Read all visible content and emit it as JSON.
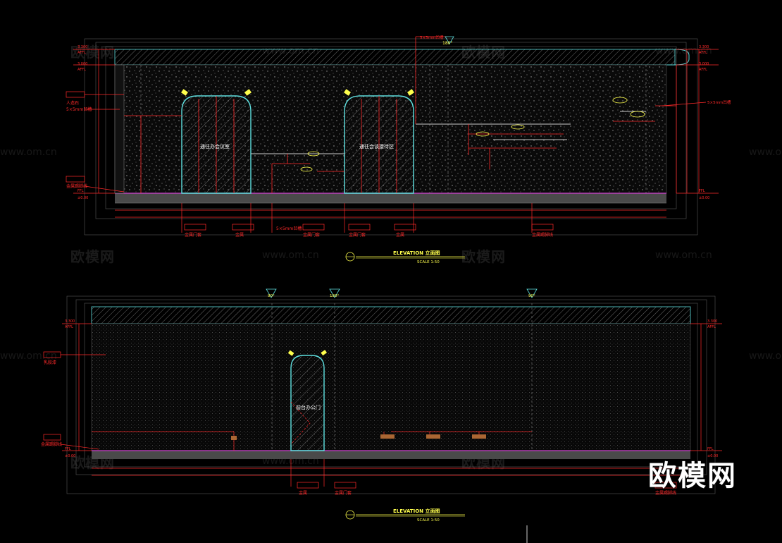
{
  "elevation1": {
    "title": "ELEVATION  立面图",
    "scale": "SCALE    1:50",
    "door1_label": "通往办会议室",
    "door2_label": "通往会谈接待区",
    "left_callouts": [
      "人造石",
      "5×5mm凹槽",
      "金属踢脚线"
    ],
    "right_callout": "5×5mm凹槽",
    "top_callout": "5×5mm凹槽",
    "bottom_callouts": [
      "金属门套",
      "金属",
      "5×5mm凹槽",
      "金属门套",
      "金属",
      "金属踢脚线"
    ],
    "level_labels": [
      "3.300",
      "AFFL",
      "3.000",
      "AFFL",
      "FFL",
      "±0.00"
    ]
  },
  "elevation2": {
    "title": "ELEVATION  立面图",
    "scale": "SCALE    1:50",
    "door_label": "前台办公门",
    "left_callouts": [
      "乳胶漆",
      "金属踢脚线"
    ],
    "bottom_callouts": [
      "金属",
      "金属门套",
      "金属踢脚线"
    ],
    "angle_labels": [
      "90°",
      "180°",
      "90°"
    ],
    "level_labels": [
      "3.300",
      "AFFL",
      "FFL",
      "±0.00"
    ]
  },
  "watermark": {
    "text": "欧模网",
    "url": "www.om.cn",
    "logo": "欧模网"
  },
  "colors": {
    "background": "#000000",
    "red": "#ff2a2a",
    "cyan": "#5fe0e0",
    "yellow": "#ffff4d",
    "magenta": "#d040d0",
    "white": "#ffffff"
  }
}
